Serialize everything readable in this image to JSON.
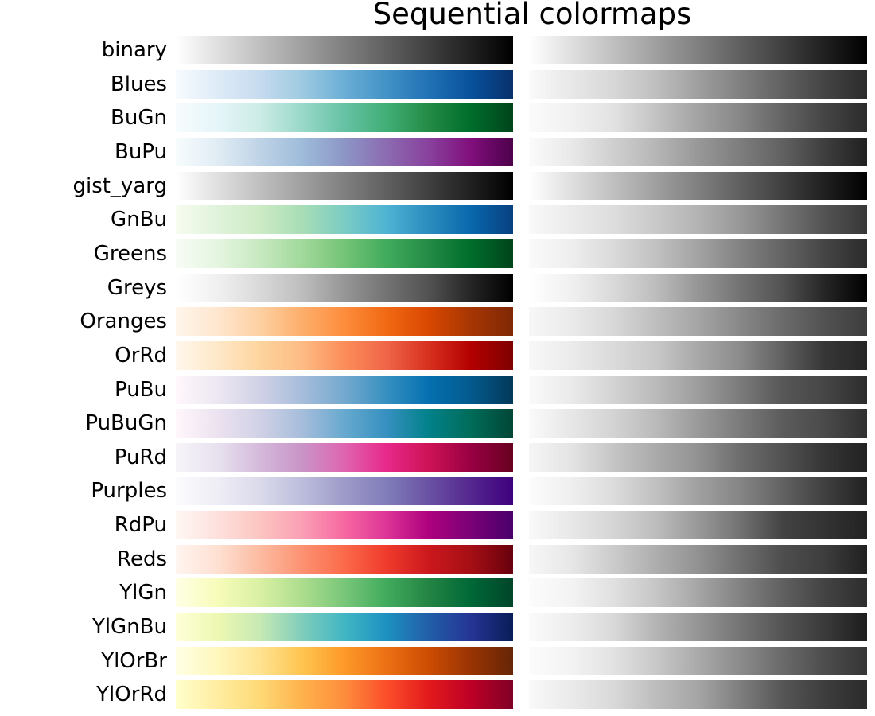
{
  "chart_data": {
    "type": "heatmap",
    "title": "Sequential colormaps",
    "colormaps": [
      {
        "name": "binary",
        "colors": [
          "#ffffff",
          "#000000"
        ]
      },
      {
        "name": "Blues",
        "colors": [
          "#f7fbff",
          "#deebf7",
          "#c6dbef",
          "#9ecae1",
          "#6baed6",
          "#4292c6",
          "#2171b5",
          "#08519c",
          "#08306b"
        ]
      },
      {
        "name": "BuGn",
        "colors": [
          "#f7fcfd",
          "#e5f5f9",
          "#ccece6",
          "#99d8c9",
          "#66c2a4",
          "#41ae76",
          "#238b45",
          "#006d2c",
          "#00441b"
        ]
      },
      {
        "name": "BuPu",
        "colors": [
          "#f7fcfd",
          "#e0ecf4",
          "#bfd3e6",
          "#9ebcda",
          "#8c96c6",
          "#8c6bb1",
          "#88419d",
          "#810f7c",
          "#4d004b"
        ]
      },
      {
        "name": "gist_yarg",
        "colors": [
          "#ffffff",
          "#000000"
        ]
      },
      {
        "name": "GnBu",
        "colors": [
          "#f7fcf0",
          "#e0f3db",
          "#ccebc5",
          "#a8ddb5",
          "#7bccc4",
          "#4eb3d3",
          "#2b8cbe",
          "#0868ac",
          "#084081"
        ]
      },
      {
        "name": "Greens",
        "colors": [
          "#f7fcf5",
          "#e5f5e0",
          "#c7e9c0",
          "#a1d99b",
          "#74c476",
          "#41ab5d",
          "#238b45",
          "#006d2c",
          "#00441b"
        ]
      },
      {
        "name": "Greys",
        "colors": [
          "#ffffff",
          "#f0f0f0",
          "#d9d9d9",
          "#bdbdbd",
          "#969696",
          "#737373",
          "#525252",
          "#252525",
          "#000000"
        ]
      },
      {
        "name": "Oranges",
        "colors": [
          "#fff5eb",
          "#fee6ce",
          "#fdd0a2",
          "#fdae6b",
          "#fd8d3c",
          "#f16913",
          "#d94801",
          "#a63603",
          "#7f2704"
        ]
      },
      {
        "name": "OrRd",
        "colors": [
          "#fff7ec",
          "#fee8c8",
          "#fdd49e",
          "#fdbb84",
          "#fc8d59",
          "#ef6548",
          "#d7301f",
          "#b30000",
          "#7f0000"
        ]
      },
      {
        "name": "PuBu",
        "colors": [
          "#fff7fb",
          "#ece7f2",
          "#d0d1e6",
          "#a6bddb",
          "#74a9cf",
          "#3690c0",
          "#0570b0",
          "#045a8d",
          "#023858"
        ]
      },
      {
        "name": "PuBuGn",
        "colors": [
          "#fff7fb",
          "#ece2f0",
          "#d0d1e6",
          "#a6bddb",
          "#67a9cf",
          "#3690c0",
          "#02818a",
          "#016c59",
          "#014636"
        ]
      },
      {
        "name": "PuRd",
        "colors": [
          "#f7f4f9",
          "#e7e1ef",
          "#d4b9da",
          "#c994c7",
          "#df65b0",
          "#e7298a",
          "#ce1256",
          "#980043",
          "#67001f"
        ]
      },
      {
        "name": "Purples",
        "colors": [
          "#fcfbfd",
          "#efedf5",
          "#dadaeb",
          "#bcbddc",
          "#9e9ac8",
          "#807dba",
          "#6a51a3",
          "#54278f",
          "#3f007d"
        ]
      },
      {
        "name": "RdPu",
        "colors": [
          "#fff7f3",
          "#fde0dd",
          "#fcc5c0",
          "#fa9fb5",
          "#f768a1",
          "#dd3497",
          "#ae017e",
          "#7a0177",
          "#49006a"
        ]
      },
      {
        "name": "Reds",
        "colors": [
          "#fff5f0",
          "#fee0d2",
          "#fcbba1",
          "#fc9272",
          "#fb6a4a",
          "#ef3b2c",
          "#cb181d",
          "#a50f15",
          "#67000d"
        ]
      },
      {
        "name": "YlGn",
        "colors": [
          "#ffffe5",
          "#f7fcb9",
          "#d9f0a3",
          "#addd8e",
          "#78c679",
          "#41ab5d",
          "#238443",
          "#006837",
          "#004529"
        ]
      },
      {
        "name": "YlGnBu",
        "colors": [
          "#ffffd9",
          "#edf8b1",
          "#c7e9b4",
          "#7fcdbb",
          "#41b6c4",
          "#1d91c0",
          "#225ea8",
          "#253494",
          "#081d58"
        ]
      },
      {
        "name": "YlOrBr",
        "colors": [
          "#ffffe5",
          "#fff7bc",
          "#fee391",
          "#fec44f",
          "#fe9929",
          "#ec7014",
          "#cc4c02",
          "#993404",
          "#662506"
        ]
      },
      {
        "name": "YlOrRd",
        "colors": [
          "#ffffcc",
          "#ffeda0",
          "#fed976",
          "#feb24c",
          "#fd8d3c",
          "#fc4e2a",
          "#e31a1c",
          "#bd0026",
          "#800026"
        ]
      }
    ]
  }
}
